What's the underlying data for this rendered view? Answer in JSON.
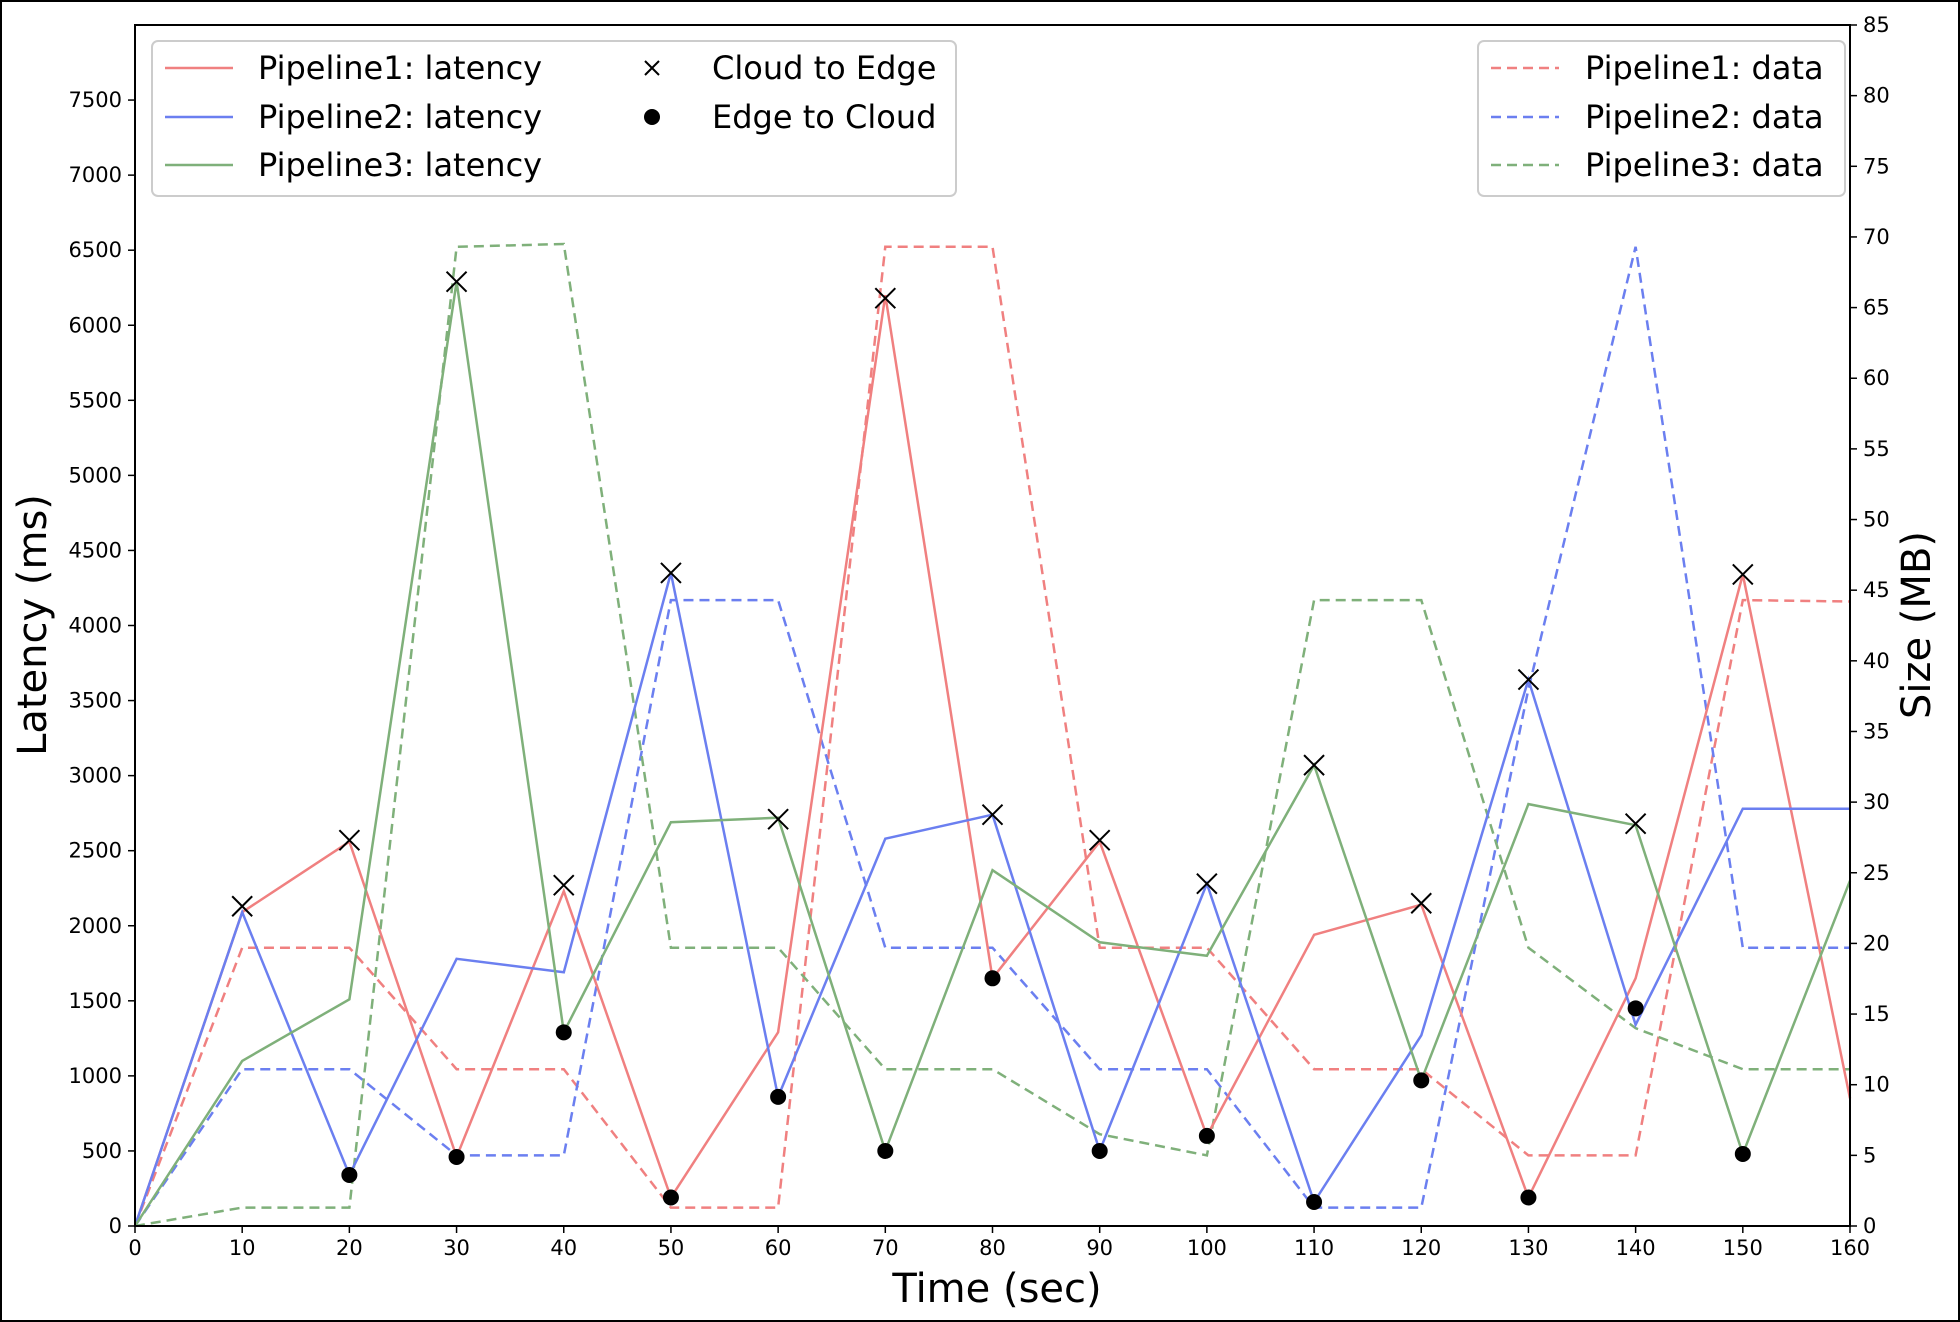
{
  "chart_data": {
    "type": "line",
    "xlabel": "Time (sec)",
    "ylabel": "Latency (ms)",
    "y2label": "Size (MB)",
    "xlim": [
      0,
      160
    ],
    "ylim": [
      0,
      8000
    ],
    "y2lim": [
      0,
      85
    ],
    "grid": false,
    "x_ticks": [
      0,
      10,
      20,
      30,
      40,
      50,
      60,
      70,
      80,
      90,
      100,
      110,
      120,
      130,
      140,
      150,
      160
    ],
    "y_ticks": [
      0,
      500,
      1000,
      1500,
      2000,
      2500,
      3000,
      3500,
      4000,
      4500,
      5000,
      5500,
      6000,
      6500,
      7000,
      7500
    ],
    "y2_ticks": [
      0,
      5,
      10,
      15,
      20,
      25,
      30,
      35,
      40,
      45,
      50,
      55,
      60,
      65,
      70,
      75,
      80,
      85
    ],
    "x": [
      0,
      10,
      20,
      30,
      40,
      50,
      60,
      70,
      80,
      90,
      100,
      110,
      120,
      130,
      140,
      150,
      160
    ],
    "latency_series": [
      {
        "name": "Pipeline1: latency",
        "color": "#f08080",
        "values": [
          0,
          2090,
          2560,
          460,
          2230,
          190,
          1290,
          6200,
          1650,
          2560,
          600,
          1940,
          2140,
          190,
          1650,
          4340,
          850
        ]
      },
      {
        "name": "Pipeline2: latency",
        "color": "#6b7ff0",
        "values": [
          0,
          2090,
          340,
          1780,
          1690,
          4350,
          860,
          2580,
          2740,
          500,
          2280,
          160,
          1270,
          3640,
          1340,
          2780,
          2780
        ]
      },
      {
        "name": "Pipeline3: latency",
        "color": "#7fb07a",
        "values": [
          0,
          1100,
          1510,
          6290,
          1290,
          2690,
          2720,
          500,
          2370,
          1890,
          1800,
          3070,
          970,
          2810,
          2670,
          480,
          2300
        ]
      }
    ],
    "data_series": [
      {
        "name": "Pipeline1: data",
        "color": "#f08080",
        "values": [
          0,
          19.7,
          19.7,
          11.1,
          11.1,
          1.3,
          1.3,
          69.3,
          69.3,
          19.7,
          19.7,
          11.1,
          11.1,
          5.0,
          5.0,
          44.3,
          44.2
        ]
      },
      {
        "name": "Pipeline2: data",
        "color": "#6b7ff0",
        "values": [
          0,
          11.1,
          11.1,
          5.0,
          5.0,
          44.3,
          44.3,
          19.7,
          19.7,
          11.1,
          11.1,
          1.3,
          1.3,
          38.0,
          69.3,
          19.7,
          19.7
        ]
      },
      {
        "name": "Pipeline3: data",
        "color": "#7fb07a",
        "values": [
          0,
          1.3,
          1.3,
          69.3,
          69.5,
          19.7,
          19.7,
          11.1,
          11.1,
          6.5,
          5.0,
          44.3,
          44.3,
          19.7,
          14.0,
          11.1,
          11.1
        ]
      }
    ],
    "markers": {
      "cloud_to_edge": {
        "name": "Cloud to Edge",
        "points": [
          [
            10,
            2130
          ],
          [
            20,
            2570
          ],
          [
            30,
            6290
          ],
          [
            40,
            2270
          ],
          [
            50,
            4350
          ],
          [
            60,
            2710
          ],
          [
            70,
            6180
          ],
          [
            80,
            2740
          ],
          [
            90,
            2570
          ],
          [
            100,
            2280
          ],
          [
            110,
            3070
          ],
          [
            120,
            2150
          ],
          [
            130,
            3640
          ],
          [
            140,
            2680
          ],
          [
            150,
            4340
          ]
        ]
      },
      "edge_to_cloud": {
        "name": "Edge to Cloud",
        "points": [
          [
            20,
            340
          ],
          [
            30,
            460
          ],
          [
            40,
            1290
          ],
          [
            50,
            190
          ],
          [
            60,
            860
          ],
          [
            70,
            500
          ],
          [
            80,
            1650
          ],
          [
            90,
            500
          ],
          [
            100,
            600
          ],
          [
            110,
            160
          ],
          [
            120,
            970
          ],
          [
            130,
            190
          ],
          [
            140,
            1450
          ],
          [
            150,
            480
          ]
        ]
      }
    },
    "legend_left_placement": "upper-left",
    "legend_right_placement": "upper-right"
  }
}
